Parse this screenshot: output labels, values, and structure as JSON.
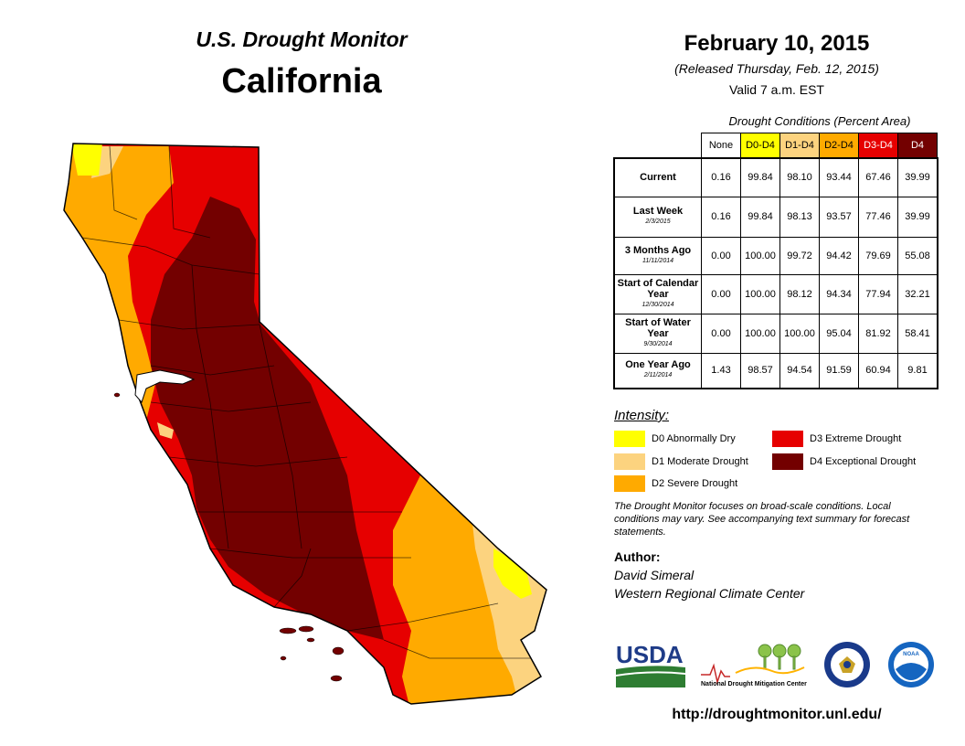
{
  "header": {
    "monitor_title": "U.S. Drought Monitor",
    "state": "California",
    "date": "February 10, 2015",
    "released": "(Released Thursday, Feb. 12, 2015)",
    "valid": "Valid 7 a.m. EST"
  },
  "conditions": {
    "caption": "Drought Conditions (Percent Area)",
    "columns": [
      {
        "label": "None",
        "color": "#ffffff",
        "text_color": "#000000"
      },
      {
        "label": "D0-D4",
        "color": "#ffff00",
        "text_color": "#000000"
      },
      {
        "label": "D1-D4",
        "color": "#fcd37f",
        "text_color": "#000000"
      },
      {
        "label": "D2-D4",
        "color": "#ffaa00",
        "text_color": "#000000"
      },
      {
        "label": "D3-D4",
        "color": "#e60000",
        "text_color": "#ffffff"
      },
      {
        "label": "D4",
        "color": "#730000",
        "text_color": "#ffffff"
      }
    ],
    "rows": [
      {
        "label": "Current",
        "sublabel": "",
        "values": [
          "0.16",
          "99.84",
          "98.10",
          "93.44",
          "67.46",
          "39.99"
        ]
      },
      {
        "label": "Last Week",
        "sublabel": "2/3/2015",
        "values": [
          "0.16",
          "99.84",
          "98.13",
          "93.57",
          "77.46",
          "39.99"
        ]
      },
      {
        "label": "3 Months Ago",
        "sublabel": "11/11/2014",
        "values": [
          "0.00",
          "100.00",
          "99.72",
          "94.42",
          "79.69",
          "55.08"
        ]
      },
      {
        "label": "Start of Calendar Year",
        "sublabel": "12/30/2014",
        "values": [
          "0.00",
          "100.00",
          "98.12",
          "94.34",
          "77.94",
          "32.21"
        ]
      },
      {
        "label": "Start of Water Year",
        "sublabel": "9/30/2014",
        "values": [
          "0.00",
          "100.00",
          "100.00",
          "95.04",
          "81.92",
          "58.41"
        ]
      },
      {
        "label": "One Year Ago",
        "sublabel": "2/11/2014",
        "values": [
          "1.43",
          "98.57",
          "94.54",
          "91.59",
          "60.94",
          "9.81"
        ]
      }
    ]
  },
  "legend": {
    "title": "Intensity:",
    "items": [
      {
        "label": "D0 Abnormally Dry",
        "color": "#ffff00"
      },
      {
        "label": "D1 Moderate Drought",
        "color": "#fcd37f"
      },
      {
        "label": "D2 Severe Drought",
        "color": "#ffaa00"
      },
      {
        "label": "D3 Extreme Drought",
        "color": "#e60000"
      },
      {
        "label": "D4 Exceptional Drought",
        "color": "#730000"
      }
    ]
  },
  "note": "The Drought Monitor focuses on broad-scale conditions. Local conditions may vary. See accompanying text summary for forecast statements.",
  "author": {
    "label": "Author:",
    "name": "David Simeral",
    "org": "Western Regional Climate Center"
  },
  "logos": {
    "usda": "USDA",
    "ndmc": "National Drought Mitigation Center",
    "noaa": "NOAA"
  },
  "url": "http://droughtmonitor.unl.edu/"
}
